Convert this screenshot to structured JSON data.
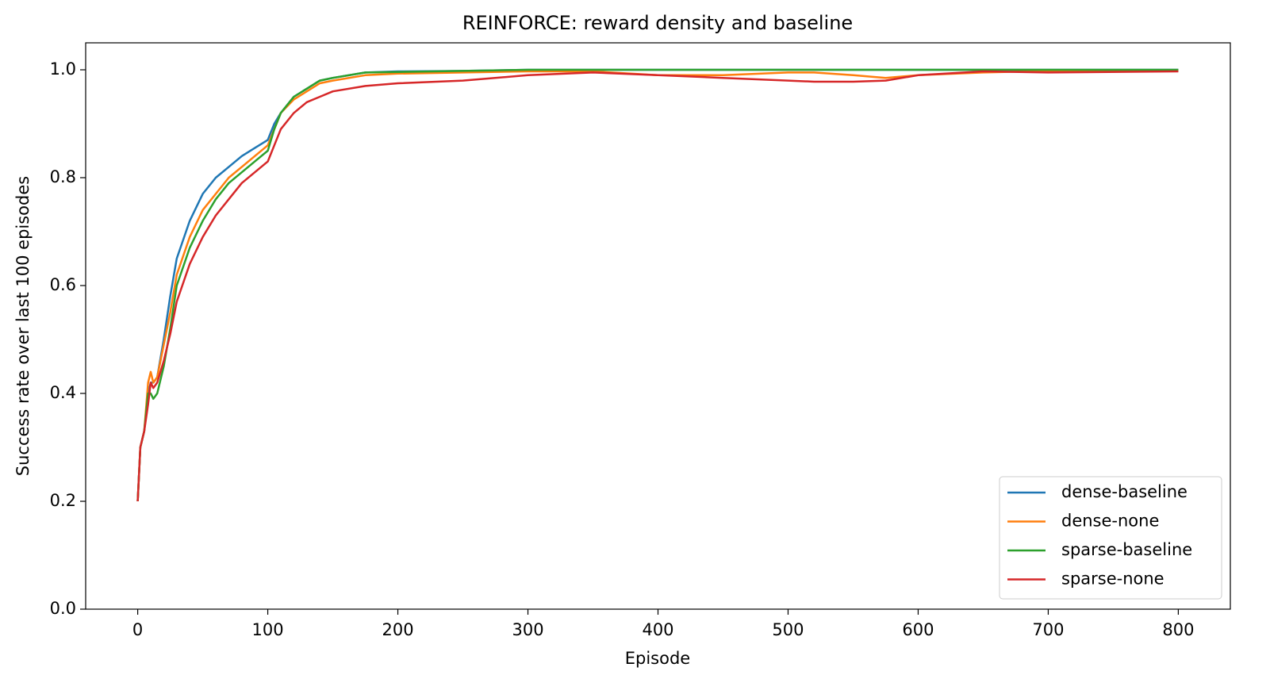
{
  "chart_data": {
    "type": "line",
    "title": "REINFORCE: reward density and baseline",
    "x_label": "Episode",
    "y_label": "Success rate over last 100 episodes",
    "x": [
      0,
      2,
      5,
      8,
      10,
      12,
      15,
      20,
      25,
      30,
      40,
      50,
      60,
      70,
      80,
      90,
      100,
      105,
      110,
      120,
      130,
      140,
      150,
      175,
      200,
      250,
      300,
      350,
      400,
      450,
      500,
      520,
      550,
      575,
      600,
      650,
      700,
      800
    ],
    "series": [
      {
        "name": "dense-baseline",
        "color": "#1f77b4",
        "values": [
          0.2,
          0.3,
          0.33,
          0.4,
          0.42,
          0.42,
          0.43,
          0.5,
          0.58,
          0.65,
          0.72,
          0.77,
          0.8,
          0.82,
          0.84,
          0.855,
          0.87,
          0.9,
          0.92,
          0.95,
          0.965,
          0.98,
          0.985,
          0.995,
          0.997,
          0.998,
          1.0,
          1.0,
          1.0,
          1.0,
          1.0,
          1.0,
          1.0,
          1.0,
          1.0,
          1.0,
          1.0,
          1.0
        ]
      },
      {
        "name": "dense-none",
        "color": "#ff7f0e",
        "values": [
          0.2,
          0.3,
          0.33,
          0.42,
          0.44,
          0.42,
          0.43,
          0.49,
          0.55,
          0.62,
          0.69,
          0.74,
          0.77,
          0.8,
          0.82,
          0.84,
          0.86,
          0.89,
          0.92,
          0.945,
          0.96,
          0.975,
          0.98,
          0.99,
          0.993,
          0.995,
          0.997,
          0.997,
          0.99,
          0.99,
          0.995,
          0.995,
          0.99,
          0.985,
          0.99,
          0.995,
          0.998,
          0.998
        ]
      },
      {
        "name": "sparse-baseline",
        "color": "#2ca02c",
        "values": [
          0.2,
          0.3,
          0.33,
          0.4,
          0.4,
          0.39,
          0.4,
          0.45,
          0.52,
          0.6,
          0.67,
          0.72,
          0.76,
          0.79,
          0.81,
          0.83,
          0.85,
          0.89,
          0.92,
          0.95,
          0.965,
          0.98,
          0.985,
          0.995,
          0.996,
          0.998,
          1.0,
          1.0,
          1.0,
          1.0,
          1.0,
          1.0,
          1.0,
          1.0,
          1.0,
          1.0,
          1.0,
          1.0
        ]
      },
      {
        "name": "sparse-none",
        "color": "#d62728",
        "values": [
          0.2,
          0.3,
          0.33,
          0.38,
          0.42,
          0.41,
          0.42,
          0.46,
          0.51,
          0.57,
          0.64,
          0.69,
          0.73,
          0.76,
          0.79,
          0.81,
          0.83,
          0.86,
          0.89,
          0.92,
          0.94,
          0.95,
          0.96,
          0.97,
          0.975,
          0.98,
          0.99,
          0.995,
          0.99,
          0.985,
          0.98,
          0.978,
          0.978,
          0.98,
          0.99,
          0.997,
          0.995,
          0.997
        ]
      }
    ],
    "xlim": [
      -40,
      840
    ],
    "ylim": [
      0,
      1.05
    ],
    "xticks": [
      0,
      100,
      200,
      300,
      400,
      500,
      600,
      700,
      800
    ],
    "yticks": [
      {
        "value": 0,
        "label": "0.0"
      },
      0.2,
      0.4,
      0.6,
      0.8,
      {
        "value": 1,
        "label": "1.0"
      }
    ],
    "legend": "lower right"
  }
}
